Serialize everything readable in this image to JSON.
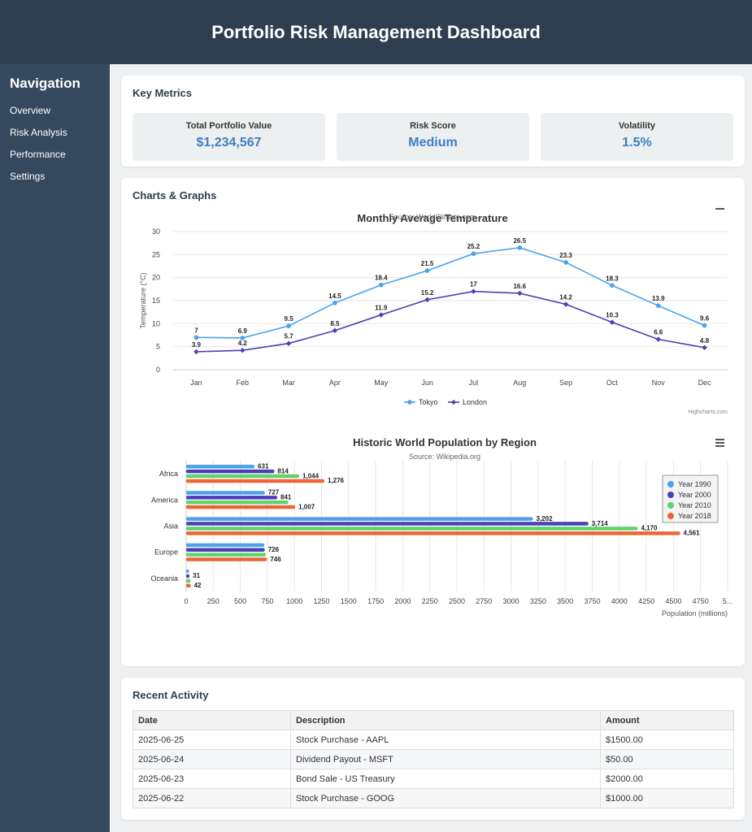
{
  "header": {
    "title": "Portfolio Risk Management Dashboard"
  },
  "sidebar": {
    "title": "Navigation",
    "items": [
      {
        "label": "Overview"
      },
      {
        "label": "Risk Analysis"
      },
      {
        "label": "Performance"
      },
      {
        "label": "Settings"
      }
    ]
  },
  "metrics": {
    "title": "Key Metrics",
    "items": [
      {
        "label": "Total Portfolio Value",
        "value": "$1,234,567"
      },
      {
        "label": "Risk Score",
        "value": "Medium"
      },
      {
        "label": "Volatility",
        "value": "1.5%"
      }
    ]
  },
  "charts_section": {
    "title": "Charts & Graphs"
  },
  "chart_data": [
    {
      "type": "line",
      "title": "Monthly Average Temperature",
      "subtitle": "Source: WorldClimate.com",
      "ylabel": "Temperature (°C)",
      "xlabel": "",
      "categories": [
        "Jan",
        "Feb",
        "Mar",
        "Apr",
        "May",
        "Jun",
        "Jul",
        "Aug",
        "Sep",
        "Oct",
        "Nov",
        "Dec"
      ],
      "ylim": [
        0,
        30
      ],
      "yticks": [
        0,
        5,
        10,
        15,
        20,
        25,
        30
      ],
      "series": [
        {
          "name": "Tokyo",
          "color": "#4aa3ec",
          "marker": "circle",
          "values": [
            7,
            6.9,
            9.5,
            14.5,
            18.4,
            21.5,
            25.2,
            26.5,
            23.3,
            18.3,
            13.9,
            9.6
          ]
        },
        {
          "name": "London",
          "color": "#4b3fb5",
          "marker": "diamond",
          "values": [
            3.9,
            4.2,
            5.7,
            8.5,
            11.9,
            15.2,
            17,
            16.6,
            14.2,
            10.3,
            6.6,
            4.8
          ]
        }
      ],
      "legend": "bottom-center",
      "credits": "Highcharts.com",
      "grid": true
    },
    {
      "type": "bar",
      "title": "Historic World Population by Region",
      "subtitle": "Source: Wikipedia.org",
      "xlabel": "Population (millions)",
      "categories": [
        "Africa",
        "America",
        "Asia",
        "Europe",
        "Oceania"
      ],
      "xlim": [
        0,
        5000
      ],
      "xticks": [
        "0",
        "250",
        "500",
        "750",
        "1000",
        "1250",
        "1500",
        "1750",
        "2000",
        "2250",
        "2500",
        "2750",
        "3000",
        "3250",
        "3500",
        "3750",
        "4000",
        "4250",
        "4500",
        "4750",
        "5..."
      ],
      "series": [
        {
          "name": "Year 1990",
          "color": "#4aa3ec",
          "values": [
            631,
            727,
            3202,
            721,
            26
          ]
        },
        {
          "name": "Year 2000",
          "color": "#4b3fb5",
          "values": [
            814,
            841,
            3714,
            726,
            31
          ]
        },
        {
          "name": "Year 2010",
          "color": "#5fd36b",
          "values": [
            1044,
            944,
            4170,
            735,
            40
          ]
        },
        {
          "name": "Year 2018",
          "color": "#ed6436",
          "values": [
            1276,
            1007,
            4561,
            746,
            42
          ]
        }
      ],
      "value_labels": [
        [
          "631",
          "727",
          "3,202",
          "",
          ""
        ],
        [
          "814",
          "841",
          "3,714",
          "726",
          "31"
        ],
        [
          "1,044",
          "",
          "4,170",
          "",
          ""
        ],
        [
          "1,276",
          "1,007",
          "4,561",
          "746",
          "42"
        ]
      ],
      "legend": "top-right",
      "grid": true
    }
  ],
  "activity": {
    "title": "Recent Activity",
    "columns": [
      "Date",
      "Description",
      "Amount"
    ],
    "rows": [
      [
        "2025-06-25",
        "Stock Purchase - AAPL",
        "$1500.00"
      ],
      [
        "2025-06-24",
        "Dividend Payout - MSFT",
        "$50.00"
      ],
      [
        "2025-06-23",
        "Bond Sale - US Treasury",
        "$2000.00"
      ],
      [
        "2025-06-22",
        "Stock Purchase - GOOG",
        "$1000.00"
      ]
    ]
  }
}
